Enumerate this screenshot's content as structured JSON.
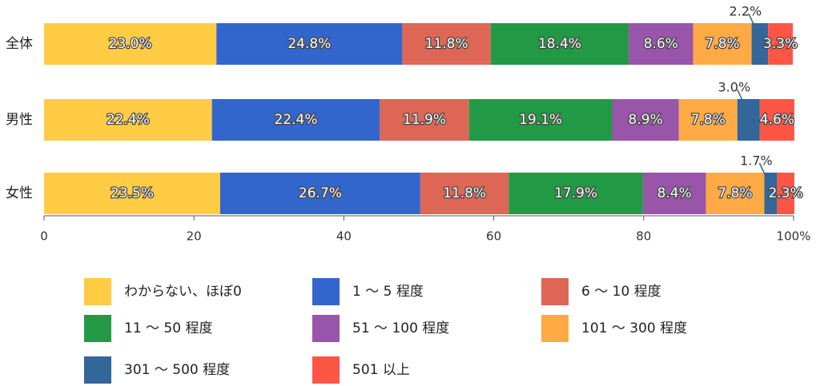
{
  "chart_data": {
    "type": "stacked-bar-horizontal",
    "categories": [
      "全体",
      "男性",
      "女性"
    ],
    "xlim": [
      0,
      100
    ],
    "xticks": [
      0,
      20,
      40,
      60,
      80,
      {
        "value": 100,
        "label": "100%"
      }
    ],
    "series": [
      {
        "name": "わからない、ほぼ0",
        "color": "#ffcc44",
        "values": [
          23.0,
          22.4,
          23.5
        ],
        "value_labels": [
          "23.0%",
          "22.4%",
          "23.5%"
        ]
      },
      {
        "name": "1 ～ 5 程度",
        "color": "#3366cc",
        "values": [
          24.8,
          22.4,
          26.7
        ],
        "value_labels": [
          "24.8%",
          "22.4%",
          "26.7%"
        ]
      },
      {
        "name": "6 ～ 10 程度",
        "color": "#dd6655",
        "values": [
          11.8,
          11.9,
          11.8
        ],
        "value_labels": [
          "11.8%",
          "11.9%",
          "11.8%"
        ]
      },
      {
        "name": "11 ～ 50 程度",
        "color": "#229944",
        "values": [
          18.4,
          19.1,
          17.9
        ],
        "value_labels": [
          "18.4%",
          "19.1%",
          "17.9%"
        ]
      },
      {
        "name": "51 ～ 100 程度",
        "color": "#9955aa",
        "values": [
          8.6,
          8.9,
          8.4
        ],
        "value_labels": [
          "8.6%",
          "8.9%",
          "8.4%"
        ]
      },
      {
        "name": "101 ～ 300 程度",
        "color": "#ffaa44",
        "values": [
          7.8,
          7.8,
          7.8
        ],
        "value_labels": [
          "7.8%",
          "7.8%",
          "7.8%"
        ]
      },
      {
        "name": "301 ～ 500 程度",
        "color": "#336699",
        "values": [
          2.2,
          3.0,
          1.7
        ],
        "value_labels": [
          "2.2%",
          "3.0%",
          "1.7%"
        ]
      },
      {
        "name": "501 以上",
        "color": "#ff5544",
        "values": [
          3.3,
          4.6,
          2.3
        ],
        "value_labels": [
          "3.3%",
          "4.6%",
          "2.3%"
        ]
      }
    ]
  }
}
